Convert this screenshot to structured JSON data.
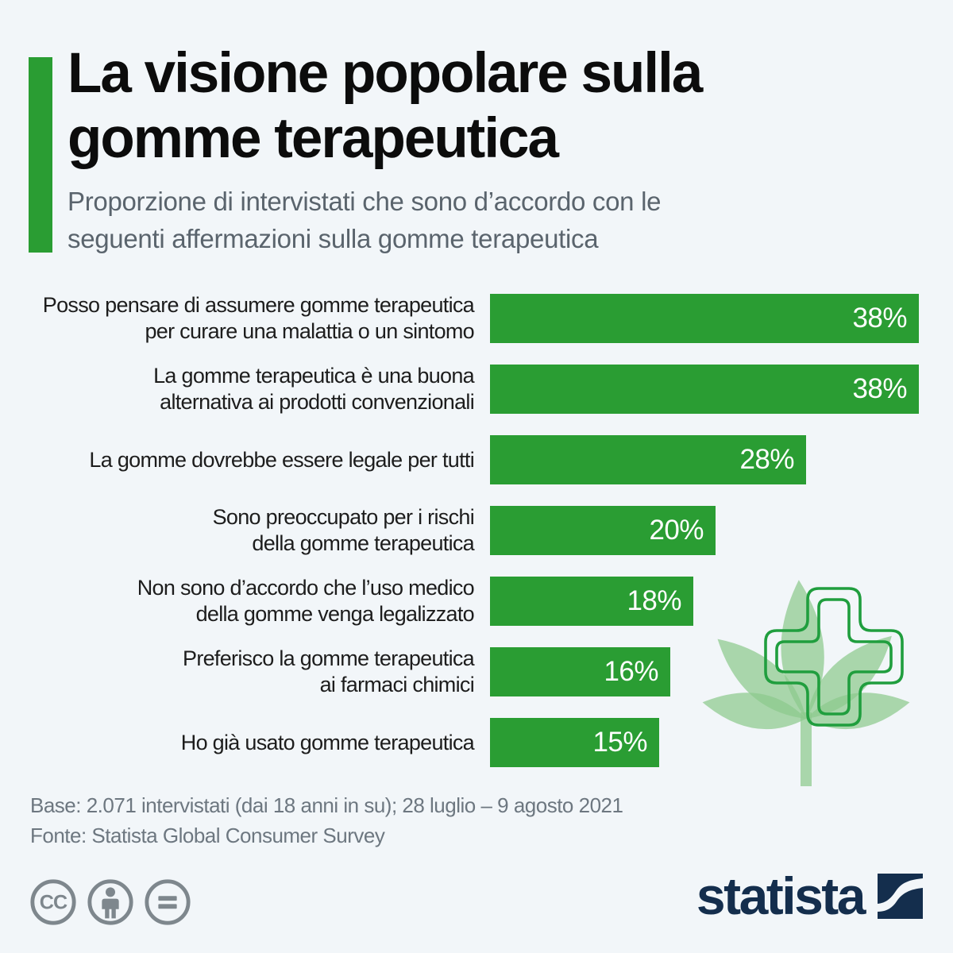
{
  "header": {
    "title": "La visione popolare sulla gomme terapeutica",
    "title_lines": [
      "La visione popolare sulla",
      "gomme terapeutica"
    ],
    "subtitle": "Proporzione di intervistati che sono d’accordo con le\nseguenti affermazioni sulla gomme terapeutica"
  },
  "chart_data": {
    "type": "bar",
    "orientation": "horizontal",
    "title": "La visione popolare sulla gomme terapeutica",
    "subtitle": "Proporzione di intervistati che sono d’accordo con le seguenti affermazioni sulla gomme terapeutica",
    "categories": [
      "Posso pensare di assumere gomme terapeutica\nper curare una malattia o un sintomo",
      "La gomme terapeutica è una buona\nalternativa ai prodotti convenzionali",
      "La gomme dovrebbe essere legale per tutti",
      "Sono preoccupato per i rischi\ndella gomme terapeutica",
      "Non sono d’accordo che l’uso medico\ndella gomme venga legalizzato",
      "Preferisco la gomme terapeutica\nai farmaci chimici",
      "Ho già usato gomme terapeutica"
    ],
    "values": [
      38,
      38,
      28,
      20,
      18,
      16,
      15
    ],
    "unit": "%",
    "xlim": [
      0,
      38
    ],
    "grid": false,
    "legend": false,
    "value_labels_inside": true,
    "bar_color": "#2a9d33",
    "value_label_color": "#ffffff"
  },
  "footer": {
    "base_note": "Base: 2.071 intervistati (dai 18 anni in su); 28 luglio – 9 agosto 2021",
    "source": "Fonte: Statista Global Consumer Survey"
  },
  "branding": {
    "logo_text": "statista"
  },
  "license_icons": [
    "cc-icon",
    "attribution-person-icon",
    "equals-no-derivatives-icon"
  ],
  "decoration": [
    "cannabis-leaf-icon",
    "medical-cross-icon"
  ],
  "colors": {
    "background": "#f2f6f9",
    "accent_green": "#2a9d33",
    "bar_green": "#2a9d33",
    "leaf_green": "#a5d4a7",
    "cross_green": "#209e3e",
    "title_text": "#0c0c0c",
    "subtitle_text": "#5a646d",
    "label_text": "#1d1d1d",
    "value_text": "#ffffff",
    "footer_text": "#6d7780",
    "license_gray": "#7e878d",
    "logo_navy": "#142e4d"
  }
}
